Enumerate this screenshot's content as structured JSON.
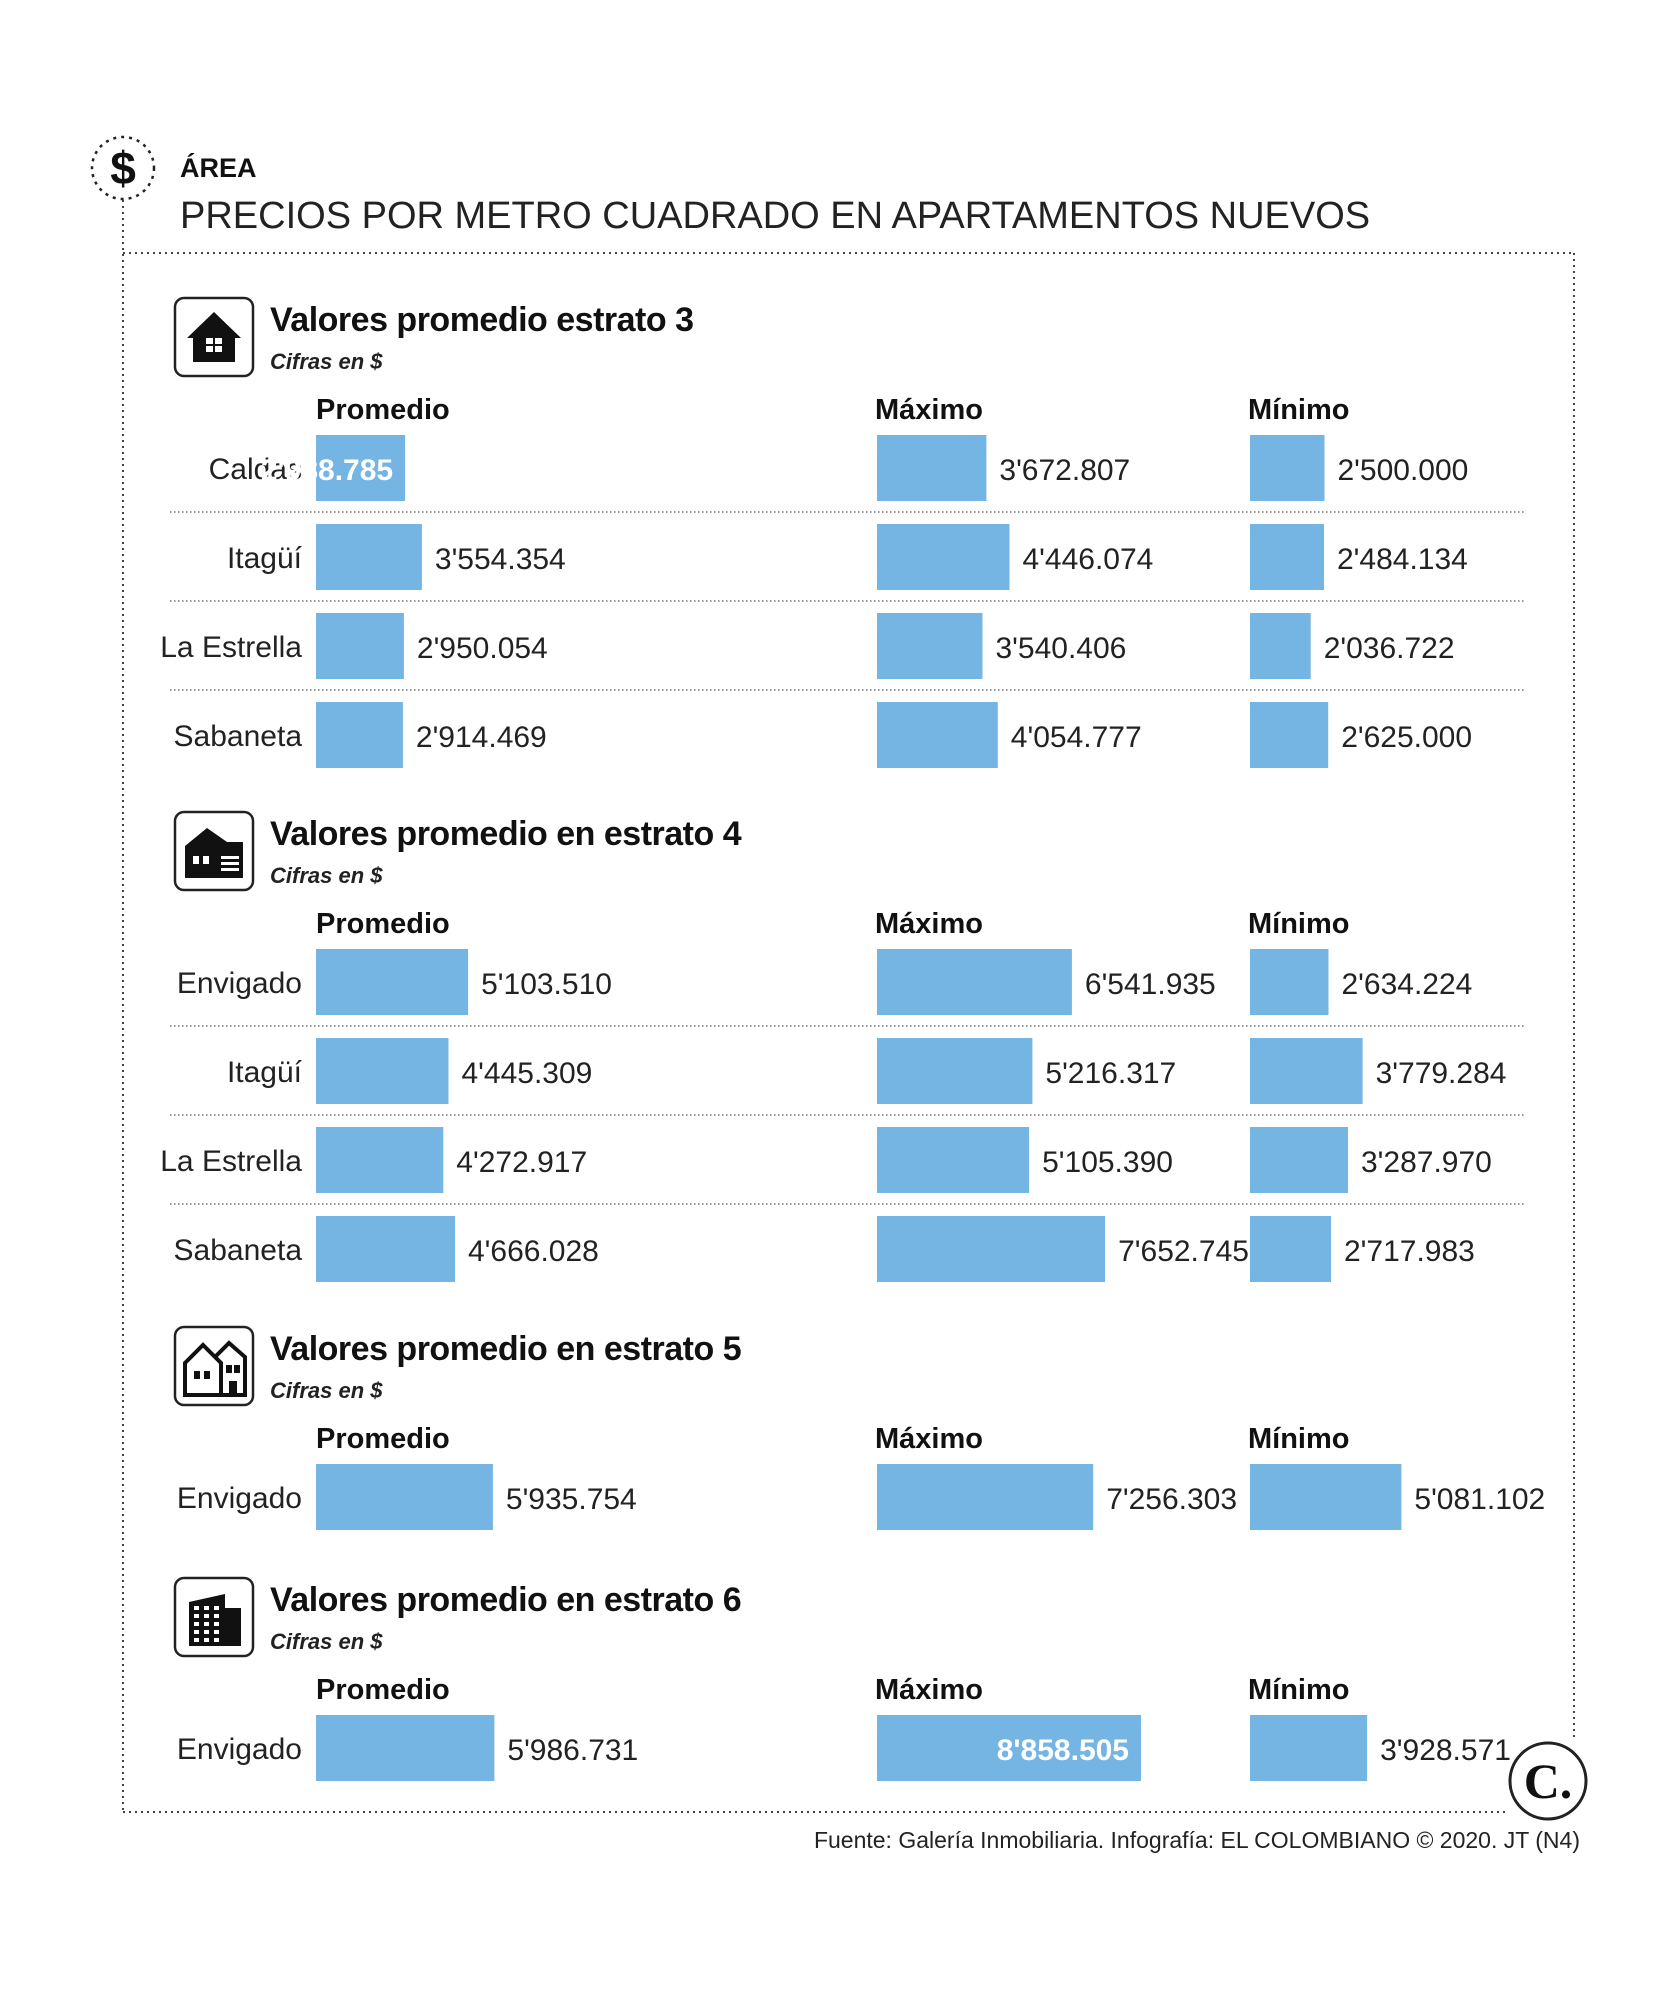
{
  "header": {
    "kicker": "ÁREA",
    "headline": "PRECIOS POR METRO CUADRADO EN APARTAMENTOS NUEVOS",
    "icon": "dollar-icon"
  },
  "footer": {
    "source": "Fuente: Galería Inmobiliaria. Infografía: EL COLOMBIANO © 2020. JT (N4)",
    "logo_text": "C."
  },
  "colors": {
    "bar": "#75b5e3",
    "text": "#222222",
    "value_in_bar": "#ffffff"
  },
  "chart_data": [
    {
      "type": "bar",
      "title": "Valores promedio estrato 3",
      "subtitle": "Cifras en $",
      "icon": "house-icon",
      "columns": [
        "Promedio",
        "Máximo",
        "Mínimo"
      ],
      "categories": [
        "Caldas",
        "Itagüí",
        "La Estrella",
        "Sabaneta"
      ],
      "series": [
        {
          "name": "Promedio",
          "values": [
            2988785,
            3554354,
            2950054,
            2914469
          ],
          "labels": [
            "2'988.785",
            "3'554.354",
            "2'950.054",
            "2'914.469"
          ]
        },
        {
          "name": "Máximo",
          "values": [
            3672807,
            4446074,
            3540406,
            4054777
          ],
          "labels": [
            "3'672.807",
            "4'446.074",
            "3'540.406",
            "4'054.777"
          ]
        },
        {
          "name": "Mínimo",
          "values": [
            2500000,
            2484134,
            2036722,
            2625000
          ],
          "labels": [
            "2'500.000",
            "2'484.134",
            "2'036.722",
            "2'625.000"
          ]
        }
      ]
    },
    {
      "type": "bar",
      "title": "Valores promedio en estrato 4",
      "subtitle": "Cifras en $",
      "icon": "house-garage-icon",
      "columns": [
        "Promedio",
        "Máximo",
        "Mínimo"
      ],
      "categories": [
        "Envigado",
        "Itagüí",
        "La Estrella",
        "Sabaneta"
      ],
      "series": [
        {
          "name": "Promedio",
          "values": [
            5103510,
            4445309,
            4272917,
            4666028
          ],
          "labels": [
            "5'103.510",
            "4'445.309",
            "4'272.917",
            "4'666.028"
          ]
        },
        {
          "name": "Máximo",
          "values": [
            6541935,
            5216317,
            5105390,
            7652745
          ],
          "labels": [
            "6'541.935",
            "5'216.317",
            "5'105.390",
            "7'652.745"
          ]
        },
        {
          "name": "Mínimo",
          "values": [
            2634224,
            3779284,
            3287970,
            2717983
          ],
          "labels": [
            "2'634.224",
            "3'779.284",
            "3'287.970",
            "2'717.983"
          ]
        }
      ]
    },
    {
      "type": "bar",
      "title": "Valores promedio en estrato 5",
      "subtitle": "Cifras en $",
      "icon": "townhouse-icon",
      "columns": [
        "Promedio",
        "Máximo",
        "Mínimo"
      ],
      "categories": [
        "Envigado"
      ],
      "series": [
        {
          "name": "Promedio",
          "values": [
            5935754
          ],
          "labels": [
            "5'935.754"
          ]
        },
        {
          "name": "Máximo",
          "values": [
            7256303
          ],
          "labels": [
            "7'256.303"
          ]
        },
        {
          "name": "Mínimo",
          "values": [
            5081102
          ],
          "labels": [
            "5'081.102"
          ]
        }
      ]
    },
    {
      "type": "bar",
      "title": "Valores promedio en estrato 6",
      "subtitle": "Cifras en $",
      "icon": "building-icon",
      "columns": [
        "Promedio",
        "Máximo",
        "Mínimo"
      ],
      "categories": [
        "Envigado"
      ],
      "series": [
        {
          "name": "Promedio",
          "values": [
            5986731
          ],
          "labels": [
            "5'986.731"
          ]
        },
        {
          "name": "Máximo",
          "values": [
            8858505
          ],
          "labels": [
            "8'858.505"
          ]
        },
        {
          "name": "Mínimo",
          "values": [
            3928571
          ],
          "labels": [
            "3'928.571"
          ]
        }
      ]
    }
  ]
}
